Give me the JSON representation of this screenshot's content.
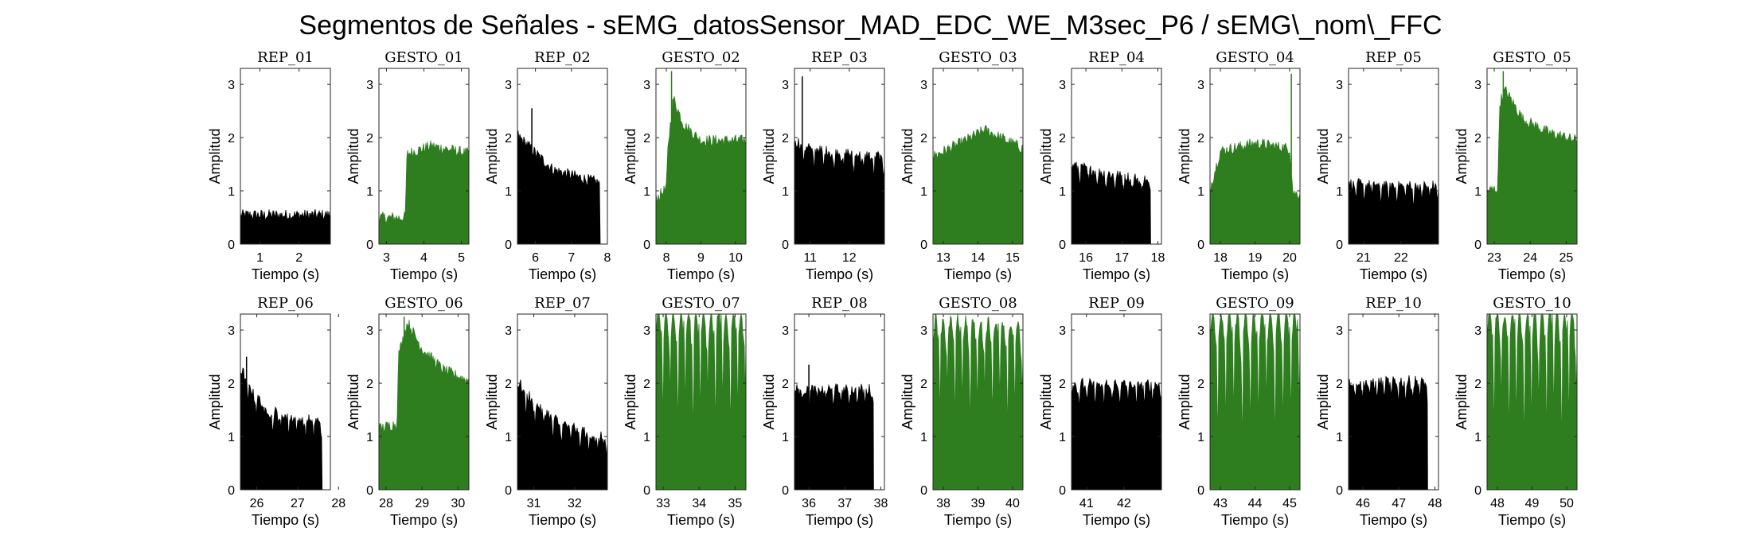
{
  "title": "Segmentos de Señales - sEMG_datosSensor_MAD_EDC_WE_M3sec_P6 / sEMG\\_nom\\_FFC",
  "colors": {
    "rep": "#000000",
    "gesto": "#2e7d1f",
    "axis": "#262626"
  },
  "chart_data": [
    {
      "type": "area",
      "title": "REP_01",
      "xlabel": "Tiempo (s)",
      "ylabel": "Amplitud",
      "xlim": [
        0.5,
        2.8
      ],
      "ylim": [
        0,
        3.3
      ],
      "xticks": [
        1,
        2
      ],
      "yticks": [
        0,
        1,
        2,
        3
      ],
      "x_start": 0.5,
      "x_end": 2.8,
      "color": "rep",
      "profile": [
        [
          0.5,
          0.5
        ],
        [
          2.8,
          0.5
        ]
      ],
      "burst_count": 0,
      "burst_depth": 0,
      "spikes": []
    },
    {
      "type": "area",
      "title": "GESTO_01",
      "xlabel": "Tiempo (s)",
      "ylabel": "Amplitud",
      "xlim": [
        2.8,
        5.2
      ],
      "ylim": [
        0,
        3.3
      ],
      "xticks": [
        3,
        4,
        5
      ],
      "yticks": [
        0,
        1,
        2,
        3
      ],
      "x_start": 2.8,
      "x_end": 5.2,
      "color": "gesto",
      "profile": [
        [
          2.8,
          0.45
        ],
        [
          3.5,
          0.45
        ],
        [
          3.55,
          1.65
        ],
        [
          4.2,
          1.8
        ],
        [
          5.2,
          1.65
        ]
      ],
      "burst_count": 0,
      "burst_depth": 0,
      "spikes": []
    },
    {
      "type": "area",
      "title": "REP_02",
      "xlabel": "Tiempo (s)",
      "ylabel": "Amplitud",
      "xlim": [
        5.5,
        8
      ],
      "ylim": [
        0,
        3.3
      ],
      "xticks": [
        6,
        7,
        8
      ],
      "yticks": [
        0,
        1,
        2,
        3
      ],
      "x_start": 5.5,
      "x_end": 7.8,
      "color": "rep",
      "profile": [
        [
          5.5,
          2.0
        ],
        [
          5.8,
          1.8
        ],
        [
          6.1,
          1.6
        ],
        [
          6.5,
          1.35
        ],
        [
          7.0,
          1.25
        ],
        [
          7.8,
          1.1
        ]
      ],
      "burst_count": 0,
      "burst_depth": 0,
      "spikes": [
        [
          5.9,
          2.55
        ]
      ]
    },
    {
      "type": "area",
      "title": "GESTO_02",
      "xlabel": "Tiempo (s)",
      "ylabel": "Amplitud",
      "xlim": [
        7.7,
        10.3
      ],
      "ylim": [
        0,
        3.3
      ],
      "xticks": [
        8,
        9,
        10
      ],
      "yticks": [
        0,
        1,
        2,
        3
      ],
      "x_start": 7.7,
      "x_end": 10.3,
      "color": "gesto",
      "profile": [
        [
          7.7,
          0.8
        ],
        [
          8.0,
          1.0
        ],
        [
          8.05,
          1.8
        ],
        [
          8.2,
          2.7
        ],
        [
          8.5,
          2.2
        ],
        [
          9.0,
          1.9
        ],
        [
          10.3,
          1.9
        ]
      ],
      "burst_count": 0,
      "burst_depth": 0,
      "spikes": [
        [
          8.15,
          3.25
        ]
      ]
    },
    {
      "type": "area",
      "title": "REP_03",
      "xlabel": "Tiempo (s)",
      "ylabel": "Amplitud",
      "xlim": [
        10.6,
        12.9
      ],
      "ylim": [
        0,
        3.3
      ],
      "xticks": [
        11,
        12
      ],
      "yticks": [
        0,
        1,
        2,
        3
      ],
      "x_start": 10.6,
      "x_end": 12.9,
      "color": "rep",
      "profile": [
        [
          10.6,
          1.9
        ],
        [
          11.2,
          1.75
        ],
        [
          12.9,
          1.6
        ]
      ],
      "burst_count": 9,
      "burst_depth": 0.45,
      "spikes": [
        [
          10.8,
          3.15
        ]
      ]
    },
    {
      "type": "area",
      "title": "GESTO_03",
      "xlabel": "Tiempo (s)",
      "ylabel": "Amplitud",
      "xlim": [
        12.7,
        15.3
      ],
      "ylim": [
        0,
        3.3
      ],
      "xticks": [
        13,
        14,
        15
      ],
      "yticks": [
        0,
        1,
        2,
        3
      ],
      "x_start": 12.7,
      "x_end": 15.3,
      "color": "gesto",
      "profile": [
        [
          12.7,
          1.6
        ],
        [
          13.5,
          1.85
        ],
        [
          14.2,
          2.1
        ],
        [
          15.3,
          1.75
        ]
      ],
      "burst_count": 0,
      "burst_depth": 0,
      "spikes": []
    },
    {
      "type": "area",
      "title": "REP_04",
      "xlabel": "Tiempo (s)",
      "ylabel": "Amplitud",
      "xlim": [
        15.6,
        18.1
      ],
      "ylim": [
        0,
        3.3
      ],
      "xticks": [
        16,
        17,
        18
      ],
      "yticks": [
        0,
        1,
        2,
        3
      ],
      "x_start": 15.6,
      "x_end": 17.8,
      "color": "rep",
      "profile": [
        [
          15.6,
          1.45
        ],
        [
          16.5,
          1.3
        ],
        [
          17.8,
          1.15
        ]
      ],
      "burst_count": 9,
      "burst_depth": 0.3,
      "spikes": []
    },
    {
      "type": "area",
      "title": "GESTO_04",
      "xlabel": "Tiempo (s)",
      "ylabel": "Amplitud",
      "xlim": [
        17.7,
        20.3
      ],
      "ylim": [
        0,
        3.3
      ],
      "xticks": [
        18,
        19,
        20
      ],
      "yticks": [
        0,
        1,
        2,
        3
      ],
      "x_start": 17.7,
      "x_end": 20.3,
      "color": "gesto",
      "profile": [
        [
          17.7,
          1.0
        ],
        [
          18.0,
          1.7
        ],
        [
          19.0,
          1.85
        ],
        [
          20.0,
          1.75
        ],
        [
          20.1,
          0.9
        ],
        [
          20.3,
          0.9
        ]
      ],
      "burst_count": 0,
      "burst_depth": 0,
      "spikes": [
        [
          20.05,
          3.2
        ]
      ]
    },
    {
      "type": "area",
      "title": "REP_05",
      "xlabel": "Tiempo (s)",
      "ylabel": "Amplitud",
      "xlim": [
        20.6,
        23
      ],
      "ylim": [
        0,
        3.3
      ],
      "xticks": [
        21,
        22
      ],
      "yticks": [
        0,
        1,
        2,
        3
      ],
      "x_start": 20.6,
      "x_end": 23.0,
      "color": "rep",
      "profile": [
        [
          20.6,
          1.1
        ],
        [
          23.0,
          1.05
        ]
      ],
      "burst_count": 11,
      "burst_depth": 0.35,
      "spikes": []
    },
    {
      "type": "area",
      "title": "GESTO_05",
      "xlabel": "Tiempo (s)",
      "ylabel": "Amplitud",
      "xlim": [
        22.8,
        25.3
      ],
      "ylim": [
        0,
        3.3
      ],
      "xticks": [
        23,
        24,
        25
      ],
      "yticks": [
        0,
        1,
        2,
        3
      ],
      "x_start": 22.8,
      "x_end": 25.3,
      "color": "gesto",
      "profile": [
        [
          22.8,
          0.95
        ],
        [
          23.1,
          1.0
        ],
        [
          23.15,
          2.6
        ],
        [
          23.3,
          2.85
        ],
        [
          23.8,
          2.3
        ],
        [
          24.5,
          2.05
        ],
        [
          25.3,
          1.9
        ]
      ],
      "burst_count": 0,
      "burst_depth": 0,
      "spikes": [
        [
          23.25,
          3.25
        ]
      ]
    },
    {
      "type": "area",
      "title": "REP_06",
      "xlabel": "Tiempo (s)",
      "ylabel": "Amplitud",
      "xlim": [
        25.6,
        27.8
      ],
      "ylim": [
        0,
        3.3
      ],
      "xticks": [
        26,
        27,
        28
      ],
      "yticks": [
        0,
        1,
        2,
        3
      ],
      "x_start": 25.6,
      "x_end": 27.6,
      "color": "rep",
      "profile": [
        [
          25.6,
          2.25
        ],
        [
          25.9,
          1.8
        ],
        [
          26.3,
          1.45
        ],
        [
          27.0,
          1.3
        ],
        [
          27.6,
          1.25
        ]
      ],
      "burst_count": 10,
      "burst_depth": 0.4,
      "spikes": [
        [
          25.75,
          2.5
        ]
      ]
    },
    {
      "type": "area",
      "title": "GESTO_06",
      "xlabel": "Tiempo (s)",
      "ylabel": "Amplitud",
      "xlim": [
        27.8,
        30.3
      ],
      "ylim": [
        0,
        3.3
      ],
      "xticks": [
        28,
        29,
        30
      ],
      "yticks": [
        0,
        1,
        2,
        3
      ],
      "x_start": 27.8,
      "x_end": 30.3,
      "color": "gesto",
      "profile": [
        [
          27.8,
          1.1
        ],
        [
          28.3,
          1.2
        ],
        [
          28.35,
          2.5
        ],
        [
          28.6,
          3.1
        ],
        [
          29.0,
          2.6
        ],
        [
          29.6,
          2.2
        ],
        [
          30.3,
          2.0
        ]
      ],
      "burst_count": 0,
      "burst_depth": 0,
      "spikes": [
        [
          28.5,
          3.25
        ]
      ]
    },
    {
      "type": "area",
      "title": "REP_07",
      "xlabel": "Tiempo (s)",
      "ylabel": "Amplitud",
      "xlim": [
        30.6,
        32.8
      ],
      "ylim": [
        0,
        3.3
      ],
      "xticks": [
        31,
        32
      ],
      "yticks": [
        0,
        1,
        2,
        3
      ],
      "x_start": 30.6,
      "x_end": 32.8,
      "color": "rep",
      "profile": [
        [
          30.6,
          2.0
        ],
        [
          31.0,
          1.6
        ],
        [
          31.6,
          1.25
        ],
        [
          32.8,
          0.9
        ]
      ],
      "burst_count": 10,
      "burst_depth": 0.45,
      "spikes": []
    },
    {
      "type": "area",
      "title": "GESTO_07",
      "xlabel": "Tiempo (s)",
      "ylabel": "Amplitud",
      "xlim": [
        32.8,
        35.3
      ],
      "ylim": [
        0,
        3.3
      ],
      "xticks": [
        33,
        34,
        35
      ],
      "yticks": [
        0,
        1,
        2,
        3
      ],
      "x_start": 32.8,
      "x_end": 35.3,
      "color": "gesto",
      "profile": [
        [
          32.8,
          3.3
        ],
        [
          35.3,
          3.3
        ]
      ],
      "burst_count": 12,
      "burst_depth": 2.5,
      "spikes": []
    },
    {
      "type": "area",
      "title": "REP_08",
      "xlabel": "Tiempo (s)",
      "ylabel": "Amplitud",
      "xlim": [
        35.6,
        38.1
      ],
      "ylim": [
        0,
        3.3
      ],
      "xticks": [
        36,
        37,
        38
      ],
      "yticks": [
        0,
        1,
        2,
        3
      ],
      "x_start": 35.6,
      "x_end": 37.8,
      "color": "rep",
      "profile": [
        [
          35.6,
          1.85
        ],
        [
          37.8,
          1.85
        ]
      ],
      "burst_count": 10,
      "burst_depth": 0.35,
      "spikes": [
        [
          36.0,
          2.35
        ]
      ]
    },
    {
      "type": "area",
      "title": "GESTO_08",
      "xlabel": "Tiempo (s)",
      "ylabel": "Amplitud",
      "xlim": [
        37.7,
        40.3
      ],
      "ylim": [
        0,
        3.3
      ],
      "xticks": [
        38,
        39,
        40
      ],
      "yticks": [
        0,
        1,
        2,
        3
      ],
      "x_start": 37.7,
      "x_end": 40.3,
      "color": "gesto",
      "profile": [
        [
          37.7,
          3.2
        ],
        [
          40.3,
          3.1
        ]
      ],
      "burst_count": 12,
      "burst_depth": 2.2,
      "spikes": []
    },
    {
      "type": "area",
      "title": "REP_09",
      "xlabel": "Tiempo (s)",
      "ylabel": "Amplitud",
      "xlim": [
        40.6,
        43
      ],
      "ylim": [
        0,
        3.3
      ],
      "xticks": [
        41,
        42
      ],
      "yticks": [
        0,
        1,
        2,
        3
      ],
      "x_start": 40.6,
      "x_end": 43.0,
      "color": "rep",
      "profile": [
        [
          40.6,
          1.95
        ],
        [
          43.0,
          1.95
        ]
      ],
      "burst_count": 11,
      "burst_depth": 0.45,
      "spikes": []
    },
    {
      "type": "area",
      "title": "GESTO_09",
      "xlabel": "Tiempo (s)",
      "ylabel": "Amplitud",
      "xlim": [
        42.7,
        45.3
      ],
      "ylim": [
        0,
        3.3
      ],
      "xticks": [
        43,
        44,
        45
      ],
      "yticks": [
        0,
        1,
        2,
        3
      ],
      "x_start": 42.7,
      "x_end": 45.3,
      "color": "gesto",
      "profile": [
        [
          42.7,
          3.3
        ],
        [
          45.3,
          3.3
        ]
      ],
      "burst_count": 11,
      "burst_depth": 2.7,
      "spikes": []
    },
    {
      "type": "area",
      "title": "REP_10",
      "xlabel": "Tiempo (s)",
      "ylabel": "Amplitud",
      "xlim": [
        45.6,
        48.1
      ],
      "ylim": [
        0,
        3.3
      ],
      "xticks": [
        46,
        47,
        48
      ],
      "yticks": [
        0,
        1,
        2,
        3
      ],
      "x_start": 45.6,
      "x_end": 47.8,
      "color": "rep",
      "profile": [
        [
          45.6,
          2.0
        ],
        [
          47.8,
          2.0
        ]
      ],
      "burst_count": 11,
      "burst_depth": 0.4,
      "spikes": []
    },
    {
      "type": "area",
      "title": "GESTO_10",
      "xlabel": "Tiempo (s)",
      "ylabel": "Amplitud",
      "xlim": [
        47.7,
        50.3
      ],
      "ylim": [
        0,
        3.3
      ],
      "xticks": [
        48,
        49,
        50
      ],
      "yticks": [
        0,
        1,
        2,
        3
      ],
      "x_start": 47.7,
      "x_end": 50.3,
      "color": "gesto",
      "profile": [
        [
          47.7,
          3.3
        ],
        [
          50.3,
          3.3
        ]
      ],
      "burst_count": 12,
      "burst_depth": 2.7,
      "spikes": []
    }
  ]
}
